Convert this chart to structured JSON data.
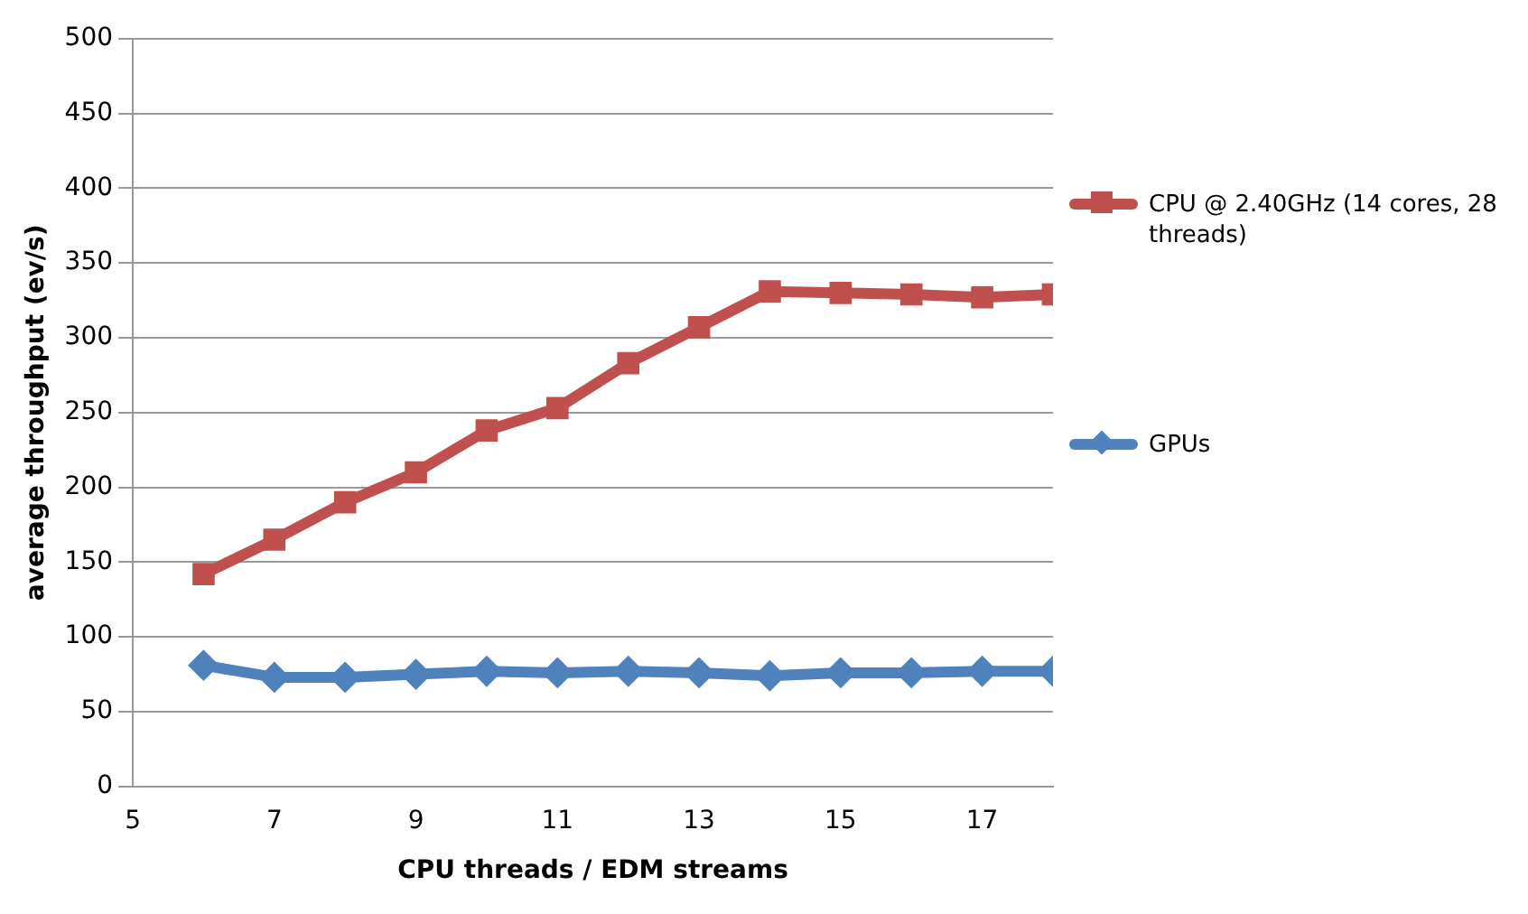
{
  "chart_data": {
    "type": "line",
    "xlabel": "CPU threads / EDM streams",
    "ylabel": "average throughput (ev/s)",
    "x": [
      6,
      7,
      8,
      9,
      10,
      11,
      12,
      13,
      14,
      15,
      16,
      17,
      18
    ],
    "series": [
      {
        "name": "CPU @ 2.40GHz (14 cores, 28 threads)",
        "color": "#c0504d",
        "marker": "square",
        "values": [
          142,
          165,
          190,
          210,
          238,
          253,
          283,
          307,
          331,
          330,
          329,
          327,
          329
        ]
      },
      {
        "name": "GPUs",
        "color": "#4f81bd",
        "marker": "diamond",
        "values": [
          81,
          73,
          73,
          75,
          77,
          76,
          77,
          76,
          74,
          76,
          76,
          77,
          77
        ]
      }
    ],
    "xlim": [
      5,
      18
    ],
    "xticks": [
      5,
      7,
      9,
      11,
      13,
      15,
      17
    ],
    "ylim": [
      0,
      500
    ],
    "yticks": [
      0,
      50,
      100,
      150,
      200,
      250,
      300,
      350,
      400,
      450,
      500
    ],
    "grid": "y",
    "legend": "right",
    "line_style": "solid"
  }
}
